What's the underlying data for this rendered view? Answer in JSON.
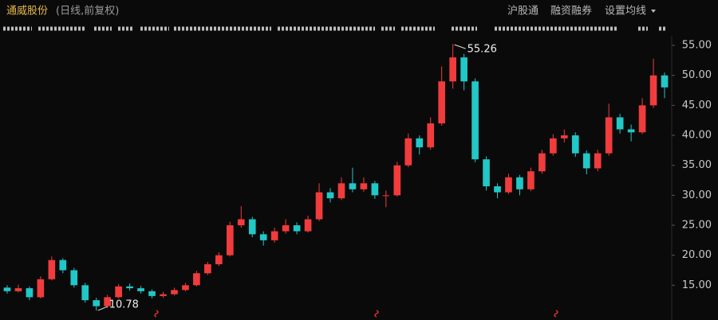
{
  "header": {
    "title": "通威股份",
    "subtitle": "(日线,前复权)",
    "buttons": [
      "沪股通",
      "融资融券",
      "设置均线"
    ]
  },
  "chart_data": {
    "type": "candlestick",
    "open": [
      14.6,
      14.0,
      14.5,
      13.0,
      16.0,
      19.2,
      17.5,
      15.0,
      12.5,
      11.5,
      13.0,
      14.8,
      14.5,
      14.0,
      13.2,
      13.5,
      14.2,
      15.0,
      17.0,
      18.5,
      20.0,
      25.0,
      26.0,
      23.5,
      22.5,
      24.0,
      25.0,
      24.0,
      26.0,
      30.5,
      29.5,
      32.0,
      31.0,
      32.0,
      30.0,
      30.0,
      35.0,
      39.5,
      38.0,
      42.0,
      49.0,
      53.0,
      49.0,
      36.0,
      31.5,
      30.5,
      33.0,
      31.0,
      34.0,
      37.0,
      39.5,
      40.0,
      37.0,
      34.5,
      37.0,
      43.0,
      41.0,
      40.5,
      45.0,
      50.0
    ],
    "high": [
      15.0,
      15.1,
      14.8,
      16.5,
      19.8,
      19.5,
      17.9,
      15.4,
      12.9,
      13.4,
      15.2,
      15.3,
      14.9,
      14.3,
      13.9,
      14.6,
      15.4,
      17.4,
      18.9,
      20.5,
      25.6,
      28.2,
      26.4,
      24.0,
      24.6,
      26.0,
      25.5,
      26.6,
      32.0,
      31.2,
      33.0,
      34.6,
      33.0,
      32.4,
      30.8,
      35.6,
      40.3,
      40.0,
      43.0,
      51.5,
      55.26,
      53.6,
      49.5,
      36.5,
      32.0,
      33.6,
      33.4,
      34.6,
      37.6,
      40.2,
      41.0,
      40.5,
      37.5,
      37.6,
      45.3,
      43.6,
      41.8,
      46.2,
      52.8,
      50.5
    ],
    "low": [
      13.6,
      13.8,
      12.5,
      12.8,
      15.8,
      17.0,
      14.6,
      12.1,
      10.78,
      11.2,
      12.8,
      14.1,
      13.6,
      12.8,
      12.9,
      13.3,
      14.0,
      14.8,
      16.7,
      18.2,
      19.8,
      24.6,
      23.0,
      21.6,
      22.1,
      23.6,
      23.5,
      23.8,
      25.7,
      28.8,
      29.2,
      30.5,
      30.6,
      29.4,
      28.0,
      29.8,
      34.7,
      36.8,
      37.6,
      41.6,
      47.8,
      47.5,
      35.5,
      30.8,
      29.5,
      30.2,
      30.0,
      30.7,
      33.6,
      36.6,
      38.8,
      36.4,
      33.5,
      34.0,
      36.6,
      40.3,
      39.0,
      40.2,
      44.6,
      46.2
    ],
    "close": [
      14.0,
      14.5,
      13.0,
      16.0,
      19.2,
      17.5,
      15.0,
      12.5,
      11.5,
      13.0,
      14.8,
      14.5,
      14.0,
      13.2,
      13.5,
      14.2,
      15.0,
      17.0,
      18.5,
      20.0,
      25.0,
      26.0,
      23.5,
      22.5,
      24.0,
      25.0,
      24.0,
      26.0,
      30.5,
      29.5,
      32.0,
      31.0,
      32.0,
      30.0,
      30.0,
      35.0,
      39.5,
      38.0,
      42.0,
      49.0,
      53.0,
      49.0,
      36.0,
      31.5,
      30.5,
      33.0,
      31.0,
      34.0,
      37.0,
      39.5,
      40.0,
      37.0,
      34.5,
      37.0,
      43.0,
      41.0,
      40.5,
      45.0,
      50.0,
      48.0
    ],
    "up_color": "#f03c3c",
    "down_color": "#22c7c7",
    "ylim": [
      9.2,
      56.6
    ],
    "yticks": [
      {
        "value": 15,
        "label": "15.00"
      },
      {
        "value": 20,
        "label": "20.00"
      },
      {
        "value": 25,
        "label": "25.00"
      },
      {
        "value": 30,
        "label": "30.00"
      },
      {
        "value": 35,
        "label": "35.00"
      },
      {
        "value": 40,
        "label": "40.00"
      },
      {
        "value": 45,
        "label": "45.00"
      },
      {
        "value": 50,
        "label": "50.00"
      },
      {
        "value": 55,
        "label": "55.00"
      }
    ]
  }
}
